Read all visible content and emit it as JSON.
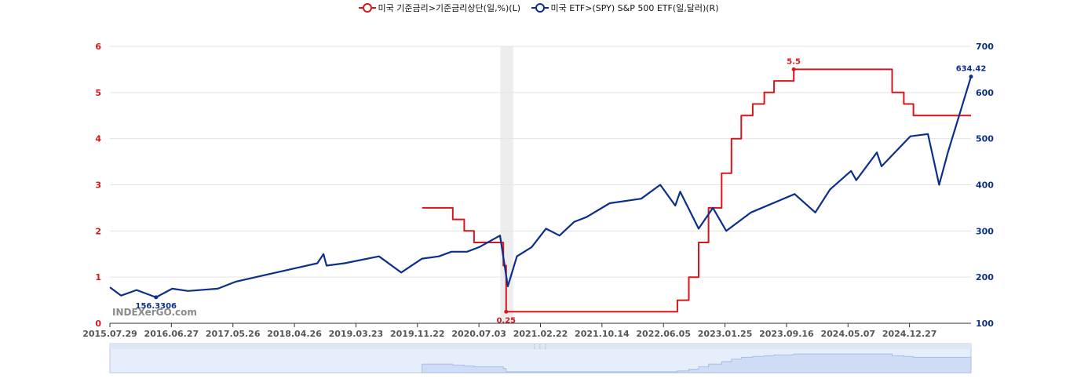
{
  "legend": [
    {
      "label": "미국 기준금리>기준금리상단(일,%)(L)",
      "color": "#d6161d"
    },
    {
      "label": "미국 ETF>(SPY) S&P 500 ETF(일,달러)(R)",
      "color": "#0b2f8a"
    }
  ],
  "watermark": "INDEXerGO.com",
  "chart_data": {
    "type": "line",
    "x_ticks": [
      "2015.07.29",
      "2016.06.27",
      "2017.05.26",
      "2018.04.26",
      "2019.03.23",
      "2019.11.22",
      "2020.07.03",
      "2021.02.22",
      "2021.10.14",
      "2022.06.05",
      "2023.01.25",
      "2023.09.16",
      "2024.05.07",
      "2024.12.27"
    ],
    "x_range": [
      "2015-07-29",
      "2025-08-22"
    ],
    "y_left": {
      "ticks": [
        0,
        1,
        2,
        3,
        4,
        5,
        6
      ],
      "range": [
        0,
        6
      ],
      "color": "#d6161d"
    },
    "y_right": {
      "ticks": [
        100,
        200,
        300,
        400,
        500,
        600,
        700
      ],
      "range": [
        100,
        700
      ],
      "color": "#0b2f8a"
    },
    "shaded_period": [
      "2020-02-20",
      "2020-04-15"
    ],
    "grid": true,
    "legend_position": "top-center",
    "series": [
      {
        "name": "미국 기준금리>기준금리상단(일,%)(L)",
        "axis": "left",
        "color": "#d6161d",
        "step": true,
        "points": [
          [
            "2019-03-23",
            2.5
          ],
          [
            "2019-08-01",
            2.5
          ],
          [
            "2019-08-01",
            2.25
          ],
          [
            "2019-09-19",
            2.25
          ],
          [
            "2019-09-19",
            2.0
          ],
          [
            "2019-10-31",
            2.0
          ],
          [
            "2019-10-31",
            1.75
          ],
          [
            "2020-03-04",
            1.75
          ],
          [
            "2020-03-04",
            1.25
          ],
          [
            "2020-03-16",
            1.25
          ],
          [
            "2020-03-16",
            0.25
          ],
          [
            "2022-03-17",
            0.25
          ],
          [
            "2022-03-17",
            0.5
          ],
          [
            "2022-05-05",
            0.5
          ],
          [
            "2022-05-05",
            1.0
          ],
          [
            "2022-06-16",
            1.0
          ],
          [
            "2022-06-16",
            1.75
          ],
          [
            "2022-07-28",
            1.75
          ],
          [
            "2022-07-28",
            2.5
          ],
          [
            "2022-09-22",
            2.5
          ],
          [
            "2022-09-22",
            3.25
          ],
          [
            "2022-11-03",
            3.25
          ],
          [
            "2022-11-03",
            4.0
          ],
          [
            "2022-12-15",
            4.0
          ],
          [
            "2022-12-15",
            4.5
          ],
          [
            "2023-02-02",
            4.5
          ],
          [
            "2023-02-02",
            4.75
          ],
          [
            "2023-03-23",
            4.75
          ],
          [
            "2023-03-23",
            5.0
          ],
          [
            "2023-05-04",
            5.0
          ],
          [
            "2023-05-04",
            5.25
          ],
          [
            "2023-07-27",
            5.25
          ],
          [
            "2023-07-27",
            5.5
          ],
          [
            "2024-09-19",
            5.5
          ],
          [
            "2024-09-19",
            5.0
          ],
          [
            "2024-11-08",
            5.0
          ],
          [
            "2024-11-08",
            4.75
          ],
          [
            "2024-12-19",
            4.75
          ],
          [
            "2024-12-19",
            4.5
          ],
          [
            "2025-08-22",
            4.5
          ]
        ],
        "annotations": [
          {
            "date": "2023-07-27",
            "value": 5.5,
            "label": "5.5"
          },
          {
            "date": "2020-03-16",
            "value": 0.25,
            "label": "0.25"
          }
        ]
      },
      {
        "name": "미국 ETF>(SPY) S&P 500 ETF(일,달러)(R)",
        "axis": "right",
        "color": "#0b2f8a",
        "points": [
          [
            "2015-07-29",
            178
          ],
          [
            "2015-09-15",
            160
          ],
          [
            "2015-11-20",
            172
          ],
          [
            "2016-02-11",
            156.3306
          ],
          [
            "2016-04-20",
            175
          ],
          [
            "2016-06-27",
            170
          ],
          [
            "2016-11-01",
            175
          ],
          [
            "2017-01-15",
            190
          ],
          [
            "2017-05-26",
            205
          ],
          [
            "2017-12-31",
            230
          ],
          [
            "2018-01-26",
            250
          ],
          [
            "2018-02-08",
            225
          ],
          [
            "2018-04-26",
            230
          ],
          [
            "2018-09-20",
            245
          ],
          [
            "2018-12-24",
            210
          ],
          [
            "2019-03-23",
            240
          ],
          [
            "2019-06-03",
            245
          ],
          [
            "2019-07-26",
            255
          ],
          [
            "2019-10-01",
            255
          ],
          [
            "2019-11-22",
            265
          ],
          [
            "2020-02-19",
            290
          ],
          [
            "2020-03-23",
            180
          ],
          [
            "2020-05-01",
            245
          ],
          [
            "2020-07-03",
            265
          ],
          [
            "2020-09-02",
            305
          ],
          [
            "2020-10-30",
            290
          ],
          [
            "2021-01-01",
            320
          ],
          [
            "2021-02-22",
            330
          ],
          [
            "2021-06-01",
            360
          ],
          [
            "2021-10-14",
            370
          ],
          [
            "2022-01-03",
            400
          ],
          [
            "2022-03-08",
            355
          ],
          [
            "2022-03-29",
            385
          ],
          [
            "2022-06-16",
            305
          ],
          [
            "2022-08-16",
            350
          ],
          [
            "2022-10-12",
            300
          ],
          [
            "2023-01-25",
            340
          ],
          [
            "2023-07-31",
            380
          ],
          [
            "2023-10-27",
            340
          ],
          [
            "2023-12-29",
            390
          ],
          [
            "2024-03-28",
            430
          ],
          [
            "2024-04-19",
            410
          ],
          [
            "2024-07-16",
            470
          ],
          [
            "2024-08-05",
            440
          ],
          [
            "2024-12-06",
            505
          ],
          [
            "2025-02-19",
            510
          ],
          [
            "2025-04-08",
            400
          ],
          [
            "2025-05-15",
            470
          ],
          [
            "2025-08-22",
            634.42
          ]
        ],
        "annotations": [
          {
            "date": "2025-08-22",
            "value": 634.42,
            "label": "634.42"
          },
          {
            "date": "2016-02-11",
            "value": 156.3306,
            "label": "156.3306"
          }
        ]
      }
    ]
  }
}
